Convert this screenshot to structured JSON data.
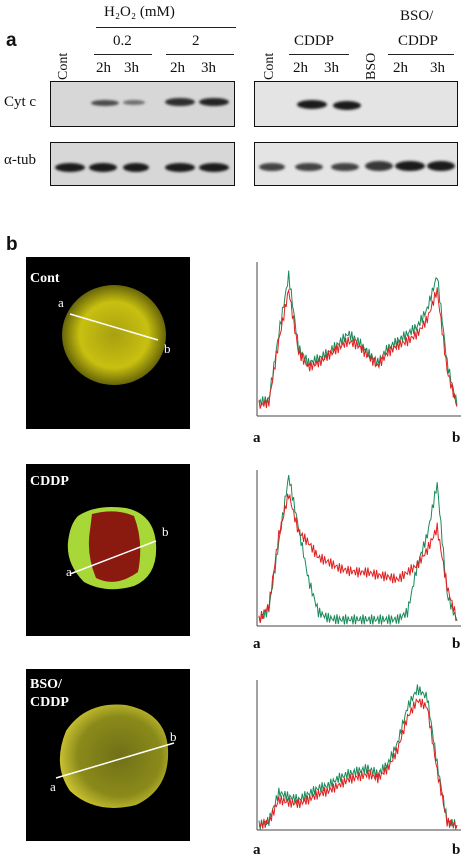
{
  "panel_a": {
    "letter": "a",
    "treatment_header": "H₂O₂ (mM)",
    "dose_low": "0.2",
    "dose_high": "2",
    "lanes_left": [
      "2h",
      "3h",
      "2h",
      "3h"
    ],
    "cont_left": "Cont",
    "cont_right": "Cont",
    "cddp_header": "CDDP",
    "bso_lane": "BSO",
    "bso_cddp_header_line1": "BSO/",
    "bso_cddp_header_line2": "CDDP",
    "lanes_cddp": [
      "2h",
      "3h"
    ],
    "lanes_bso_cddp": [
      "2h",
      "3h"
    ],
    "row_cytc": "Cyt c",
    "row_tub": "α-tub"
  },
  "panel_b": {
    "letter": "b",
    "endpoint_a": "a",
    "endpoint_b": "b",
    "conditions": [
      {
        "label_line1": "Cont",
        "label_line2": ""
      },
      {
        "label_line1": "CDDP",
        "label_line2": ""
      },
      {
        "label_line1": "BSO/",
        "label_line2": "CDDP"
      }
    ],
    "colors": {
      "green_trace": "#1a8a5a",
      "red_trace": "#e02020",
      "cell_yellow": "#c8c010",
      "cell_red": "#8a1a10",
      "cell_green": "#a8d838"
    }
  },
  "chart_data": [
    {
      "type": "line",
      "title": "",
      "xlabel": "",
      "ylabel": "",
      "x_endpoints": [
        "a",
        "b"
      ],
      "x": [
        0,
        0.05,
        0.1,
        0.15,
        0.2,
        0.25,
        0.3,
        0.35,
        0.4,
        0.45,
        0.5,
        0.55,
        0.6,
        0.65,
        0.7,
        0.75,
        0.8,
        0.85,
        0.9,
        0.95,
        1.0
      ],
      "series": [
        {
          "values": [
            0.08,
            0.1,
            0.55,
            0.95,
            0.45,
            0.35,
            0.38,
            0.42,
            0.48,
            0.55,
            0.5,
            0.42,
            0.35,
            0.45,
            0.5,
            0.55,
            0.6,
            0.72,
            0.95,
            0.35,
            0.06
          ]
        },
        {
          "values": [
            0.06,
            0.08,
            0.5,
            0.85,
            0.42,
            0.32,
            0.35,
            0.4,
            0.45,
            0.5,
            0.47,
            0.4,
            0.33,
            0.42,
            0.47,
            0.5,
            0.55,
            0.65,
            0.85,
            0.3,
            0.05
          ]
        }
      ]
    },
    {
      "type": "line",
      "title": "",
      "xlabel": "",
      "ylabel": "",
      "x_endpoints": [
        "a",
        "b"
      ],
      "x": [
        0,
        0.05,
        0.1,
        0.15,
        0.2,
        0.25,
        0.3,
        0.35,
        0.4,
        0.45,
        0.5,
        0.55,
        0.6,
        0.65,
        0.7,
        0.75,
        0.8,
        0.85,
        0.9,
        0.95,
        1.0
      ],
      "series": [
        {
          "values": [
            0.02,
            0.1,
            0.55,
            1.0,
            0.65,
            0.3,
            0.08,
            0.04,
            0.03,
            0.03,
            0.03,
            0.03,
            0.03,
            0.03,
            0.03,
            0.08,
            0.4,
            0.6,
            0.95,
            0.2,
            0.02
          ]
        },
        {
          "values": [
            0.03,
            0.12,
            0.6,
            0.88,
            0.62,
            0.55,
            0.45,
            0.42,
            0.38,
            0.36,
            0.35,
            0.35,
            0.33,
            0.32,
            0.3,
            0.35,
            0.4,
            0.5,
            0.65,
            0.25,
            0.03
          ]
        }
      ]
    },
    {
      "type": "line",
      "title": "",
      "xlabel": "",
      "ylabel": "",
      "x_endpoints": [
        "a",
        "b"
      ],
      "x": [
        0,
        0.05,
        0.1,
        0.15,
        0.2,
        0.25,
        0.3,
        0.35,
        0.4,
        0.45,
        0.5,
        0.55,
        0.6,
        0.65,
        0.7,
        0.75,
        0.8,
        0.85,
        0.9,
        0.95,
        1.0
      ],
      "series": [
        {
          "values": [
            0.02,
            0.05,
            0.25,
            0.22,
            0.2,
            0.24,
            0.28,
            0.3,
            0.35,
            0.38,
            0.4,
            0.42,
            0.38,
            0.45,
            0.6,
            0.85,
            0.98,
            0.92,
            0.45,
            0.05,
            0.02
          ]
        },
        {
          "values": [
            0.02,
            0.04,
            0.2,
            0.18,
            0.17,
            0.2,
            0.24,
            0.26,
            0.3,
            0.34,
            0.36,
            0.38,
            0.35,
            0.42,
            0.55,
            0.78,
            0.9,
            0.85,
            0.4,
            0.04,
            0.02
          ]
        }
      ]
    }
  ]
}
